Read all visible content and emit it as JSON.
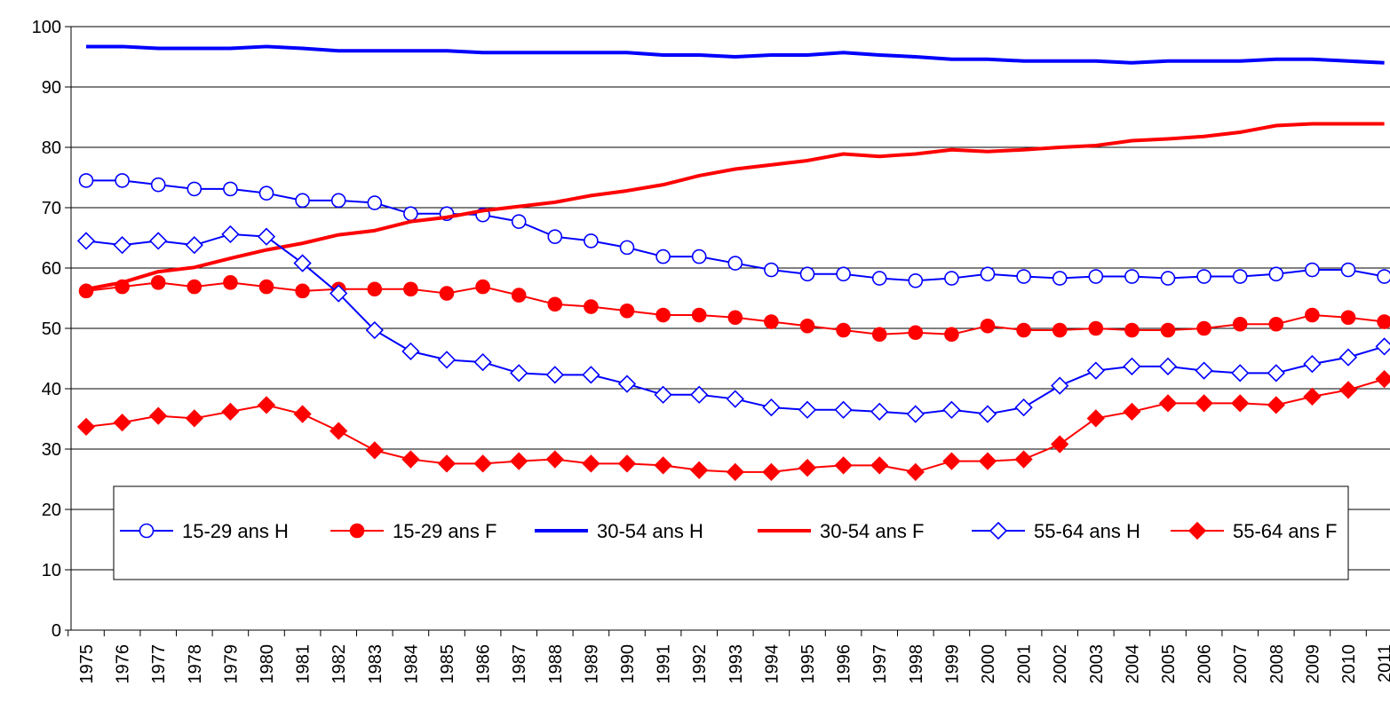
{
  "chart_data": {
    "type": "line",
    "title": "",
    "xlabel": "",
    "ylabel": "",
    "ylim": [
      0,
      100
    ],
    "yticks": [
      "0",
      "10",
      "20",
      "30",
      "40",
      "50",
      "60",
      "70",
      "80",
      "90",
      "100"
    ],
    "grid": "horizontal",
    "legend_position": "lower-center",
    "x": [
      "1975",
      "1976",
      "1977",
      "1978",
      "1979",
      "1980",
      "1981",
      "1982",
      "1983",
      "1984",
      "1985",
      "1986",
      "1987",
      "1988",
      "1989",
      "1990",
      "1991",
      "1992",
      "1993",
      "1994",
      "1995",
      "1996",
      "1997",
      "1998",
      "1999",
      "2000",
      "2001",
      "2002",
      "2003",
      "2004",
      "2005",
      "2006",
      "2007",
      "2008",
      "2009",
      "2010",
      "2011"
    ],
    "series": [
      {
        "name": "15-29 ans H",
        "color": "#0000FF",
        "marker": "circle-open",
        "width": 2,
        "values": [
          74.5,
          74.5,
          73.8,
          73.1,
          73.1,
          72.4,
          71.2,
          71.2,
          70.8,
          69.0,
          69.0,
          68.8,
          67.7,
          65.2,
          64.5,
          63.4,
          61.9,
          61.9,
          60.8,
          59.7,
          59.0,
          59.0,
          58.3,
          57.9,
          58.3,
          59.0,
          58.6,
          58.3,
          58.6,
          58.6,
          58.3,
          58.6,
          58.6,
          59.0,
          59.7,
          59.7,
          58.6
        ]
      },
      {
        "name": "15-29 ans F",
        "color": "#FF0000",
        "marker": "circle-filled",
        "width": 2,
        "values": [
          56.2,
          56.9,
          57.6,
          56.9,
          57.6,
          56.9,
          56.2,
          56.5,
          56.5,
          56.5,
          55.8,
          56.9,
          55.5,
          54.0,
          53.6,
          52.9,
          52.2,
          52.2,
          51.8,
          51.1,
          50.4,
          49.7,
          49.0,
          49.3,
          49.0,
          50.4,
          49.7,
          49.7,
          50.0,
          49.7,
          49.7,
          50.0,
          50.7,
          50.7,
          52.2,
          51.8,
          51.1
        ]
      },
      {
        "name": "30-54 ans H",
        "color": "#0000FF",
        "marker": "none",
        "width": 4,
        "values": [
          96.7,
          96.7,
          96.4,
          96.4,
          96.4,
          96.7,
          96.4,
          96.0,
          96.0,
          96.0,
          96.0,
          95.7,
          95.7,
          95.7,
          95.7,
          95.7,
          95.3,
          95.3,
          95.0,
          95.3,
          95.3,
          95.7,
          95.3,
          95.0,
          94.6,
          94.6,
          94.3,
          94.3,
          94.3,
          94.0,
          94.3,
          94.3,
          94.3,
          94.6,
          94.6,
          94.3,
          94.0
        ]
      },
      {
        "name": "30-54 ans F",
        "color": "#FF0000",
        "marker": "none",
        "width": 4,
        "values": [
          56.5,
          57.6,
          59.4,
          60.1,
          61.6,
          63.0,
          64.1,
          65.5,
          66.2,
          67.7,
          68.4,
          69.5,
          70.2,
          70.9,
          72.0,
          72.8,
          73.8,
          75.3,
          76.4,
          77.1,
          77.8,
          78.9,
          78.5,
          78.9,
          79.6,
          79.3,
          79.6,
          80.0,
          80.3,
          81.1,
          81.4,
          81.8,
          82.5,
          83.6,
          83.9,
          83.9,
          83.9
        ]
      },
      {
        "name": "55-64 ans H",
        "color": "#0000FF",
        "marker": "diamond-open",
        "width": 2,
        "values": [
          64.5,
          63.8,
          64.5,
          63.8,
          65.6,
          65.2,
          60.8,
          55.8,
          49.7,
          46.2,
          44.8,
          44.4,
          42.6,
          42.3,
          42.3,
          40.8,
          39.0,
          39.0,
          38.3,
          36.9,
          36.5,
          36.5,
          36.2,
          35.8,
          36.5,
          35.8,
          36.9,
          40.5,
          43.0,
          43.7,
          43.7,
          43.0,
          42.6,
          42.6,
          44.1,
          45.2,
          47.0
        ]
      },
      {
        "name": "55-64 ans F",
        "color": "#FF0000",
        "marker": "diamond-filled",
        "width": 2,
        "values": [
          33.7,
          34.4,
          35.5,
          35.1,
          36.2,
          37.3,
          35.8,
          33.0,
          29.8,
          28.3,
          27.6,
          27.6,
          28.0,
          28.3,
          27.6,
          27.6,
          27.3,
          26.5,
          26.2,
          26.2,
          26.9,
          27.3,
          27.3,
          26.2,
          28.0,
          28.0,
          28.3,
          30.8,
          35.1,
          36.2,
          37.6,
          37.6,
          37.6,
          37.3,
          38.7,
          39.8,
          41.6
        ]
      }
    ]
  }
}
